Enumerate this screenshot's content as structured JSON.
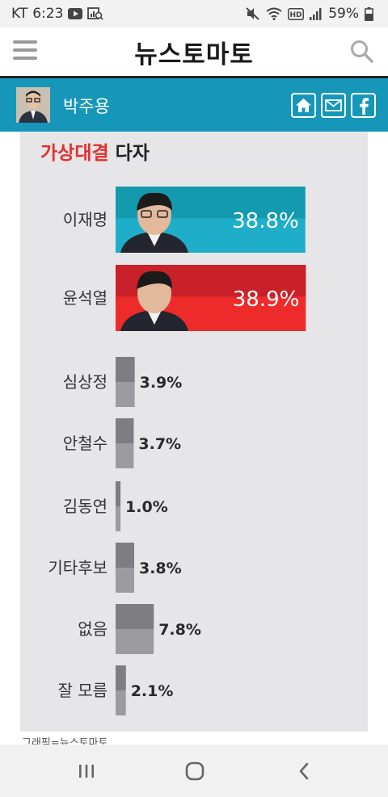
{
  "status_bar": {
    "carrier": "KT",
    "time": "6:23",
    "battery": "59%",
    "icons": [
      "youtube-icon",
      "gallery-search-icon",
      "mute-icon",
      "wifi-icon",
      "hd-icon",
      "signal-icon",
      "battery-icon"
    ]
  },
  "header": {
    "logo": "뉴스토마토",
    "icons": [
      "menu-icon",
      "search-icon"
    ]
  },
  "author": {
    "name": "박주용",
    "share_icons": [
      "home-icon",
      "mail-icon",
      "facebook-icon"
    ]
  },
  "chart_data": {
    "type": "bar",
    "orientation": "horizontal",
    "title_accent": "가상대결",
    "title_rest": " 다자",
    "categories": [
      "이재명",
      "윤석열",
      "심상정",
      "안철수",
      "김동연",
      "기타후보",
      "없음",
      "잘 모름"
    ],
    "values": [
      38.8,
      38.9,
      3.9,
      3.7,
      1.0,
      3.8,
      7.8,
      2.1
    ],
    "labels": [
      "38.8%",
      "38.9%",
      "3.9%",
      "3.7%",
      "1.0%",
      "3.8%",
      "7.8%",
      "2.1%"
    ],
    "unit": "%",
    "colors": {
      "lee": [
        "#1faec9",
        "#149aae"
      ],
      "yoon": [
        "#ee2b2b",
        "#c9202a"
      ],
      "others": [
        "#9c9ca0",
        "#7d7d82"
      ]
    },
    "xlim": [
      0,
      40
    ],
    "grid": false,
    "legend": "none"
  },
  "caption": "그래픽=뉴스토마토",
  "nav": {
    "icons": [
      "recent-apps-icon",
      "home-circle-icon",
      "back-icon"
    ]
  }
}
